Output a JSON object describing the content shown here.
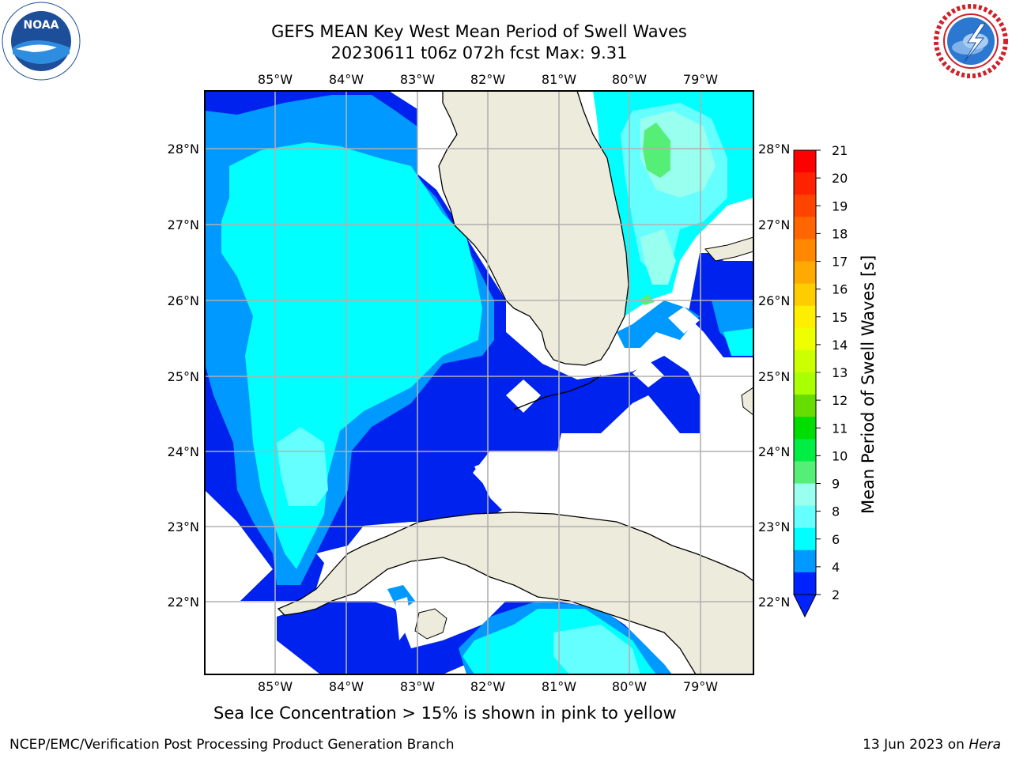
{
  "title": {
    "line1": "GEFS MEAN Key West Mean Period of Swell Waves",
    "line2": "20230611 t06z 072h fcst   Max: 9.31"
  },
  "logos": {
    "left": "noaa-logo",
    "left_text": "NOAA",
    "left_ring_text": "NATIONAL OCEANIC AND ATMOSPHERIC ADMINISTRATION · U.S. DEPARTMENT OF COMMERCE",
    "right": "nws-logo",
    "right_ring_text": "NATIONAL WEATHER SERVICE"
  },
  "axes": {
    "lon_labels": [
      "85°W",
      "84°W",
      "83°W",
      "82°W",
      "81°W",
      "80°W",
      "79°W"
    ],
    "lat_labels": [
      "28°N",
      "27°N",
      "26°N",
      "25°N",
      "24°N",
      "23°N",
      "22°N"
    ]
  },
  "colorbar": {
    "label": "Mean Period of Swell Waves [s]",
    "ticks": [
      "21",
      "20",
      "19",
      "18",
      "17",
      "16",
      "15",
      "14",
      "13",
      "12",
      "11",
      "10",
      "9",
      "8",
      "6",
      "4",
      "2"
    ],
    "colors": [
      "#ff0000",
      "#ff2200",
      "#ff4400",
      "#ff6600",
      "#ff8800",
      "#ffaa00",
      "#ffcc00",
      "#ffee00",
      "#eeff00",
      "#ccff00",
      "#aaff00",
      "#66dd00",
      "#00dd00",
      "#00ee44",
      "#55ee77",
      "#99ffee",
      "#66ffff",
      "#00ffff",
      "#0099ff",
      "#0022ff"
    ]
  },
  "subtitle": "Sea Ice Concentration > 15% is shown in pink to yellow",
  "footer": {
    "left": "NCEP/EMC/Verification Post Processing Product Generation Branch",
    "right_date": "13 Jun 2023 on ",
    "right_host": "Hera"
  },
  "palette": {
    "land": "#ecebdc",
    "swell_2_4": "#0022ee",
    "swell_4_6": "#0099ff",
    "swell_6_8": "#00ffff",
    "swell_8_9": "#66ffff",
    "swell_9_10": "#99ffee",
    "swell_10_11": "#55ee77"
  }
}
